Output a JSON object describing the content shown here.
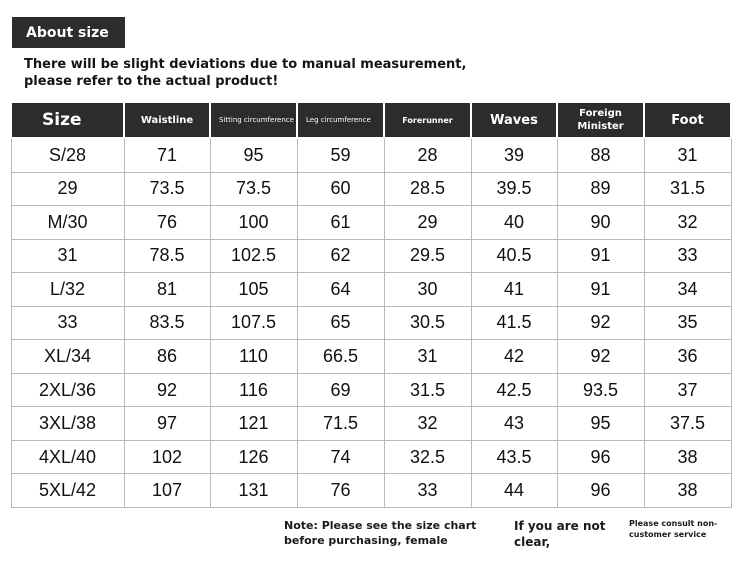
{
  "header": {
    "badge": "About size",
    "notice": "There will be slight deviations due to manual measurement, please refer to the actual product!"
  },
  "table": {
    "columns": [
      "Size",
      "Waistline",
      "Sitting circumference",
      "Leg circumference",
      "Forerunner",
      "Waves",
      "Foreign Minister",
      "Foot"
    ],
    "rows": [
      [
        "S/28",
        "71",
        "95",
        "59",
        "28",
        "39",
        "88",
        "31"
      ],
      [
        "29",
        "73.5",
        "73.5",
        "60",
        "28.5",
        "39.5",
        "89",
        "31.5"
      ],
      [
        "M/30",
        "76",
        "100",
        "61",
        "29",
        "40",
        "90",
        "32"
      ],
      [
        "31",
        "78.5",
        "102.5",
        "62",
        "29.5",
        "40.5",
        "91",
        "33"
      ],
      [
        "L/32",
        "81",
        "105",
        "64",
        "30",
        "41",
        "91",
        "34"
      ],
      [
        "33",
        "83.5",
        "107.5",
        "65",
        "30.5",
        "41.5",
        "92",
        "35"
      ],
      [
        "XL/34",
        "86",
        "110",
        "66.5",
        "31",
        "42",
        "92",
        "36"
      ],
      [
        "2XL/36",
        "92",
        "116",
        "69",
        "31.5",
        "42.5",
        "93.5",
        "37"
      ],
      [
        "3XL/38",
        "97",
        "121",
        "71.5",
        "32",
        "43",
        "95",
        "37.5"
      ],
      [
        "4XL/40",
        "102",
        "126",
        "74",
        "32.5",
        "43.5",
        "96",
        "38"
      ],
      [
        "5XL/42",
        "107",
        "131",
        "76",
        "33",
        "44",
        "96",
        "38"
      ]
    ]
  },
  "footer": {
    "note1": "Note: Please see the size chart before purchasing, female",
    "note2": "If you are not clear,",
    "note3": "Please consult non-customer service"
  },
  "colors": {
    "header_bg": "#2c2c2c",
    "header_text": "#ffffff",
    "grid": "#b9b9b9"
  }
}
